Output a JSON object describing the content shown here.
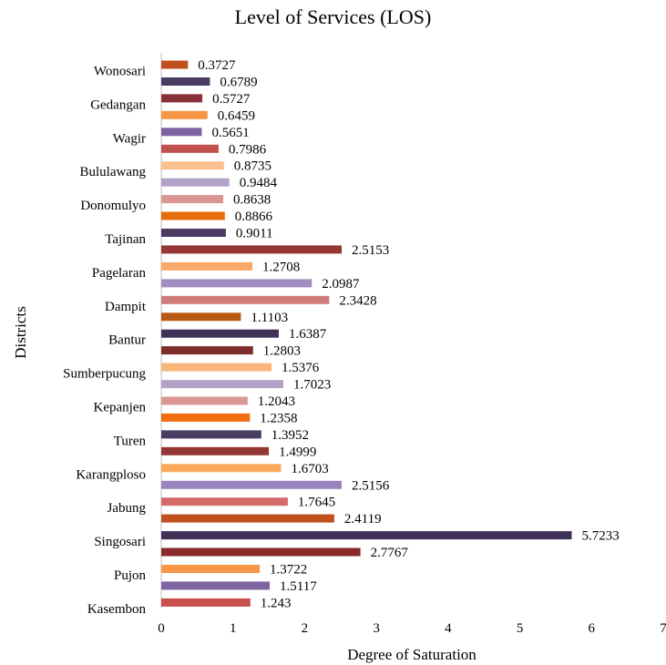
{
  "chart_data": {
    "type": "bar",
    "orientation": "horizontal",
    "title": "Level of Services (LOS)",
    "xlabel": "Degree of Saturation",
    "ylabel": "Districts",
    "xlim": [
      0,
      7
    ],
    "xticks": [
      0,
      1,
      2,
      3,
      4,
      5,
      6,
      7
    ],
    "grid": false,
    "legend": "none",
    "category_labels": [
      "Wonosari",
      "Gedangan",
      "Wagir",
      "Bululawang",
      "Donomulyo",
      "Tajinan",
      "Pagelaran",
      "Dampit",
      "Bantur",
      "Sumberpucung",
      "Kepanjen",
      "Turen",
      "Karangploso",
      "Jabung",
      "Singosari",
      "Pujon",
      "Kasembon"
    ],
    "bars": [
      {
        "value": 0.3727,
        "label": "0.3727",
        "color": "#c0501e"
      },
      {
        "value": 0.6789,
        "label": "0.6789",
        "color": "#4a3c63"
      },
      {
        "value": 0.5727,
        "label": "0.5727",
        "color": "#8a3138"
      },
      {
        "value": 0.6459,
        "label": "0.6459",
        "color": "#f79646"
      },
      {
        "value": 0.5651,
        "label": "0.5651",
        "color": "#8064a2"
      },
      {
        "value": 0.7986,
        "label": "0.7986",
        "color": "#c0504d"
      },
      {
        "value": 0.8735,
        "label": "0.8735",
        "color": "#fac090"
      },
      {
        "value": 0.9484,
        "label": "0.9484",
        "color": "#b3a2c7"
      },
      {
        "value": 0.8638,
        "label": "0.8638",
        "color": "#d99694"
      },
      {
        "value": 0.8866,
        "label": "0.8866",
        "color": "#e46c0a"
      },
      {
        "value": 0.9011,
        "label": "0.9011",
        "color": "#4a3c63"
      },
      {
        "value": 2.5153,
        "label": "2.5153",
        "color": "#953735"
      },
      {
        "value": 1.2708,
        "label": "1.2708",
        "color": "#f8a868"
      },
      {
        "value": 2.0987,
        "label": "2.0987",
        "color": "#a08cc0"
      },
      {
        "value": 2.3428,
        "label": "2.3428",
        "color": "#d07d7a"
      },
      {
        "value": 1.1103,
        "label": "1.1103",
        "color": "#b85a14"
      },
      {
        "value": 1.6387,
        "label": "1.6387",
        "color": "#3f3157"
      },
      {
        "value": 1.2803,
        "label": "1.2803",
        "color": "#7f2c2c"
      },
      {
        "value": 1.5376,
        "label": "1.5376",
        "color": "#f9b67c"
      },
      {
        "value": 1.7023,
        "label": "1.7023",
        "color": "#b3a2c7"
      },
      {
        "value": 1.2043,
        "label": "1.2043",
        "color": "#d99694"
      },
      {
        "value": 1.2358,
        "label": "1.2358",
        "color": "#f26c10"
      },
      {
        "value": 1.3952,
        "label": "1.3952",
        "color": "#4a3c63"
      },
      {
        "value": 1.4999,
        "label": "1.4999",
        "color": "#953735"
      },
      {
        "value": 1.6703,
        "label": "1.6703",
        "color": "#f9a95a"
      },
      {
        "value": 2.5156,
        "label": "2.5156",
        "color": "#9a84bd"
      },
      {
        "value": 1.7645,
        "label": "1.7645",
        "color": "#d46a6a"
      },
      {
        "value": 2.4119,
        "label": "2.4119",
        "color": "#c0501e"
      },
      {
        "value": 5.7233,
        "label": "5.7233",
        "color": "#3f3157"
      },
      {
        "value": 2.7767,
        "label": "2.7767",
        "color": "#8a2a2a"
      },
      {
        "value": 1.3722,
        "label": "1.3722",
        "color": "#f79646"
      },
      {
        "value": 1.5117,
        "label": "1.5117",
        "color": "#8064a2"
      },
      {
        "value": 1.243,
        "label": "1.243",
        "color": "#c9504d"
      }
    ],
    "category_bar_index": [
      1,
      3,
      5,
      7,
      9,
      11,
      13,
      15,
      17,
      19,
      21,
      23,
      25,
      27,
      29,
      31,
      33
    ]
  }
}
